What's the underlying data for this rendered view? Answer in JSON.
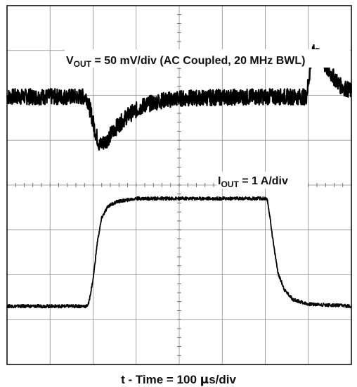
{
  "chart_data": {
    "type": "line",
    "title": "",
    "grid": true,
    "xlabel": {
      "text": "t - Time = 100 µs/div",
      "prefix": "t - Time = 100 ",
      "unit_micro": "µ",
      "suffix": "s/div"
    },
    "x_divisions": 8,
    "series": [
      {
        "name": "VOUT",
        "label_main": "V",
        "label_sub": "OUT",
        "label_rest": " = 50 mV/div (AC Coupled, 20 MHz BWL)",
        "scale": "50 mV/div",
        "unit": "div",
        "ylim": [
          -1,
          1
        ],
        "x": [
          0,
          1.85,
          1.95,
          2.05,
          2.15,
          2.3,
          2.5,
          2.8,
          3.2,
          3.6,
          4.0,
          5.0,
          6.0,
          6.95,
          7.0,
          7.08,
          7.15,
          7.3,
          7.5,
          7.75,
          8.0
        ],
        "y": [
          0,
          0,
          -0.3,
          -0.65,
          -0.9,
          -0.82,
          -0.6,
          -0.35,
          -0.15,
          -0.07,
          -0.03,
          -0.01,
          0,
          0,
          0.25,
          0.75,
          0.85,
          0.68,
          0.45,
          0.2,
          0.1
        ],
        "noise": 0.15
      },
      {
        "name": "IOUT",
        "label_main": "I",
        "label_sub": "OUT",
        "label_rest": " = 1 A/div",
        "scale": "1 A/div",
        "unit": "div",
        "ylim": [
          0,
          1
        ],
        "x": [
          0,
          1.85,
          1.9,
          2.0,
          2.1,
          2.2,
          2.35,
          2.55,
          3.0,
          6.0,
          6.05,
          6.1,
          6.2,
          6.3,
          6.45,
          6.65,
          7.0,
          8.0
        ],
        "y": [
          0,
          0,
          0.03,
          0.25,
          0.6,
          0.82,
          0.93,
          0.97,
          1.0,
          1.0,
          0.98,
          0.85,
          0.55,
          0.3,
          0.15,
          0.06,
          0.02,
          0
        ],
        "noise": 0.015
      }
    ]
  }
}
